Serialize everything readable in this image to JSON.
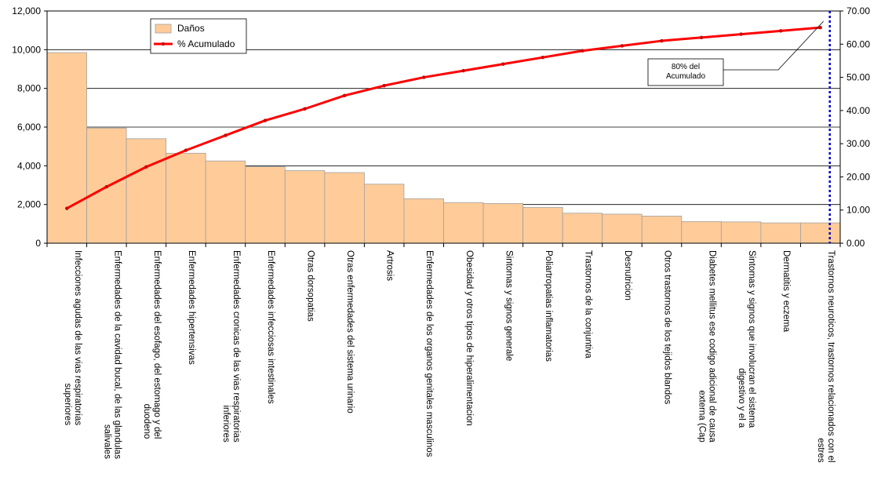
{
  "chart_data": {
    "type": "bar",
    "categories": [
      "Infecciones agudas de las vias respiratorias superiores",
      "Enfermedades de la cavidad bucal, de las glandulas salivales",
      "Enfermedades del esofago, del estomago y del duodeno",
      "Enfermedades hipertensivas",
      "Enfermedades cronicas de las vias respiratorias inferiores",
      "Enfermedades infecciosas intestinales",
      "Otras dorsopatias",
      "Otras enfermedades del sistema urinario",
      "Artrosis",
      "Enfermedades de los organos genitales masculinos",
      "Obesidad y otros tipos de hiperalimentacion",
      "Sintomas y signos generale",
      "Poliartropatias inflamatorias",
      "Trastornos de la conjuntiva",
      "Desnutricion",
      "Otros trastornos de los tejidos blandos",
      "Diabetes mellitus ese codigo adicional de causa externa (Cap",
      "Sintomas y signos que involucran el sistema digestivo y el a",
      "Dermatitis y eczema",
      "Trastornos neuroticos, trastornos relacionados con el estres"
    ],
    "category_lines": [
      [
        "Infecciones agudas de las vias respiratorias",
        "superiores"
      ],
      [
        "Enfermedades de la cavidad bucal, de las glandulas",
        "salivales"
      ],
      [
        "Enfermedades del esofago, del estomago y del",
        "duodeno"
      ],
      [
        "Enfermedades hipertensivas"
      ],
      [
        "Enfermedades cronicas de las vias respiratorias",
        "inferiores"
      ],
      [
        "Enfermedades infecciosas intestinales"
      ],
      [
        "Otras dorsopatias"
      ],
      [
        "Otras enfermedades del sistema urinario"
      ],
      [
        "Artrosis"
      ],
      [
        "Enfermedades de los organos genitales masculinos"
      ],
      [
        "Obesidad y otros tipos de hiperalimentacion"
      ],
      [
        "Sintomas y signos generale"
      ],
      [
        "Poliartropatias inflamatorias"
      ],
      [
        "Trastornos de la conjuntiva"
      ],
      [
        "Desnutricion"
      ],
      [
        "Otros trastornos de los tejidos blandos"
      ],
      [
        "Diabetes mellitus ese codigo adicional de causa",
        "externa (Cap"
      ],
      [
        "Sintomas y signos que involucran el sistema",
        "digestivo y el a"
      ],
      [
        "Dermatitis y eczema"
      ],
      [
        "Trastornos neuroticos, trastornos relacionados con el",
        "estres"
      ]
    ],
    "series": [
      {
        "name": "Daños",
        "type": "bar",
        "axis": "left",
        "color": "#FFCC99",
        "values": [
          9850,
          5950,
          5400,
          4650,
          4250,
          3950,
          3750,
          3650,
          3050,
          2300,
          2100,
          2050,
          1850,
          1550,
          1500,
          1400,
          1120,
          1100,
          1050,
          1050
        ]
      },
      {
        "name": "% Acumulado",
        "type": "line",
        "axis": "right",
        "color": "#FF0000",
        "values": [
          10.5,
          17.0,
          23.0,
          28.0,
          32.5,
          37.0,
          40.5,
          44.5,
          47.5,
          50.0,
          52.0,
          54.0,
          56.0,
          58.0,
          59.5,
          61.0,
          62.0,
          63.0,
          64.0,
          65.0
        ]
      }
    ],
    "y_left": {
      "ylim": [
        0,
        12000
      ],
      "ticks": [
        "0",
        "2,000",
        "4,000",
        "6,000",
        "8,000",
        "10,000",
        "12,000"
      ]
    },
    "y_right": {
      "ylim": [
        0,
        70
      ],
      "ticks": [
        "0.00",
        "10.00",
        "20.00",
        "30.00",
        "40.00",
        "50.00",
        "60.00",
        "70.00"
      ]
    },
    "grid": true,
    "legend": {
      "position": "top-left",
      "items": [
        {
          "label": "Daños",
          "kind": "bar",
          "color": "#FFCC99"
        },
        {
          "label": "% Acumulado",
          "kind": "line",
          "color": "#FF0000"
        }
      ]
    },
    "annotation": {
      "lines": [
        "80% del",
        "Acumulado"
      ],
      "marker_color": "#0000CC"
    }
  }
}
